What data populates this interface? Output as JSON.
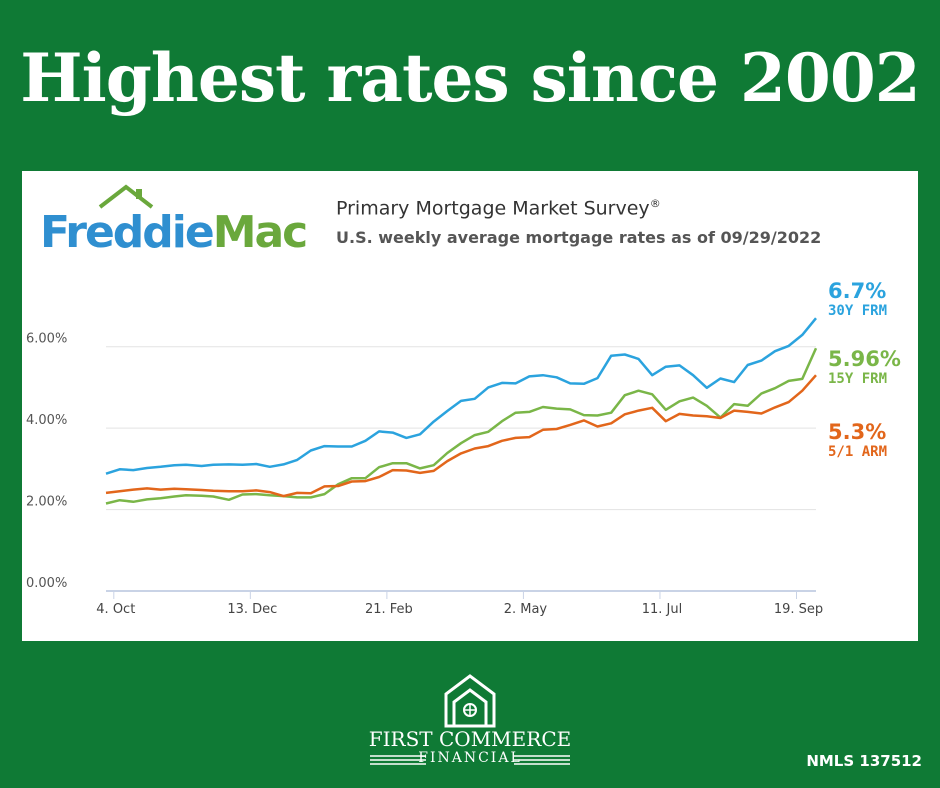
{
  "header": {
    "title": "Highest rates since 2002"
  },
  "card": {
    "logo": {
      "part1": "Freddie",
      "part2": "Mac"
    },
    "survey_title": "Primary Mortgage Market Survey",
    "survey_title_mark": "®",
    "survey_subtitle": "U.S. weekly average mortgage rates as of 09/29/2022"
  },
  "footer": {
    "company_name": "FIRST COMMERCE",
    "company_sub": "FINANCIAL",
    "nmls": "NMLS 137512"
  },
  "colors": {
    "background": "#0f7a35",
    "frm30": "#2ba3de",
    "frm15": "#7ab648",
    "arm51": "#e2661b"
  },
  "chart_data": {
    "type": "line",
    "x": [
      "2021-09-30",
      "2021-10-07",
      "2021-10-14",
      "2021-10-21",
      "2021-10-28",
      "2021-11-04",
      "2021-11-10",
      "2021-11-18",
      "2021-11-24",
      "2021-12-02",
      "2021-12-09",
      "2021-12-16",
      "2021-12-23",
      "2021-12-30",
      "2022-01-06",
      "2022-01-13",
      "2022-01-20",
      "2022-01-27",
      "2022-02-03",
      "2022-02-10",
      "2022-02-17",
      "2022-02-24",
      "2022-03-03",
      "2022-03-10",
      "2022-03-17",
      "2022-03-24",
      "2022-03-31",
      "2022-04-07",
      "2022-04-14",
      "2022-04-21",
      "2022-04-28",
      "2022-05-05",
      "2022-05-12",
      "2022-05-19",
      "2022-05-26",
      "2022-06-02",
      "2022-06-09",
      "2022-06-16",
      "2022-06-23",
      "2022-06-30",
      "2022-07-07",
      "2022-07-14",
      "2022-07-21",
      "2022-07-28",
      "2022-08-04",
      "2022-08-11",
      "2022-08-18",
      "2022-08-25",
      "2022-09-01",
      "2022-09-08",
      "2022-09-15",
      "2022-09-22",
      "2022-09-29"
    ],
    "xticks": [
      "4. Oct",
      "13. Dec",
      "21. Feb",
      "2. May",
      "11. Jul",
      "19. Sep"
    ],
    "xtick_dates": [
      "2021-10-04",
      "2021-12-13",
      "2022-02-21",
      "2022-05-02",
      "2022-07-11",
      "2022-09-19"
    ],
    "ylim": [
      0,
      7
    ],
    "yticks": [
      "0.00%",
      "2.00%",
      "4.00%",
      "6.00%"
    ],
    "ytick_values": [
      0,
      2,
      4,
      6
    ],
    "series": [
      {
        "name": "30Y FRM",
        "key": "frm30",
        "end_value": "6.7%",
        "values": [
          2.88,
          2.99,
          2.97,
          3.02,
          3.05,
          3.09,
          3.1,
          3.07,
          3.1,
          3.11,
          3.1,
          3.12,
          3.05,
          3.11,
          3.22,
          3.45,
          3.56,
          3.55,
          3.55,
          3.69,
          3.92,
          3.89,
          3.76,
          3.85,
          4.16,
          4.42,
          4.67,
          4.72,
          5.0,
          5.11,
          5.1,
          5.27,
          5.3,
          5.25,
          5.1,
          5.09,
          5.23,
          5.78,
          5.81,
          5.7,
          5.3,
          5.51,
          5.54,
          5.3,
          4.99,
          5.22,
          5.13,
          5.55,
          5.66,
          5.89,
          6.02,
          6.29,
          6.7
        ]
      },
      {
        "name": "15Y FRM",
        "key": "frm15",
        "end_value": "5.96%",
        "values": [
          2.15,
          2.23,
          2.19,
          2.25,
          2.28,
          2.32,
          2.35,
          2.34,
          2.32,
          2.24,
          2.37,
          2.38,
          2.35,
          2.33,
          2.3,
          2.3,
          2.38,
          2.62,
          2.77,
          2.77,
          3.04,
          3.14,
          3.14,
          3.01,
          3.09,
          3.39,
          3.63,
          3.83,
          3.91,
          4.17,
          4.38,
          4.4,
          4.52,
          4.48,
          4.46,
          4.32,
          4.31,
          4.38,
          4.81,
          4.92,
          4.83,
          4.45,
          4.66,
          4.75,
          4.55,
          4.26,
          4.59,
          4.55,
          4.85,
          4.98,
          5.16,
          5.21,
          5.96
        ]
      },
      {
        "name": "5/1 ARM",
        "key": "arm51",
        "end_value": "5.3%",
        "values": [
          2.41,
          2.45,
          2.49,
          2.52,
          2.49,
          2.51,
          2.5,
          2.48,
          2.46,
          2.45,
          2.45,
          2.47,
          2.43,
          2.33,
          2.41,
          2.4,
          2.57,
          2.58,
          2.69,
          2.7,
          2.8,
          2.97,
          2.96,
          2.9,
          2.95,
          3.19,
          3.38,
          3.5,
          3.56,
          3.69,
          3.76,
          3.78,
          3.96,
          3.98,
          4.08,
          4.19,
          4.04,
          4.12,
          4.34,
          4.43,
          4.5,
          4.17,
          4.35,
          4.31,
          4.29,
          4.25,
          4.43,
          4.4,
          4.36,
          4.51,
          4.64,
          4.92,
          5.3
        ]
      }
    ]
  }
}
